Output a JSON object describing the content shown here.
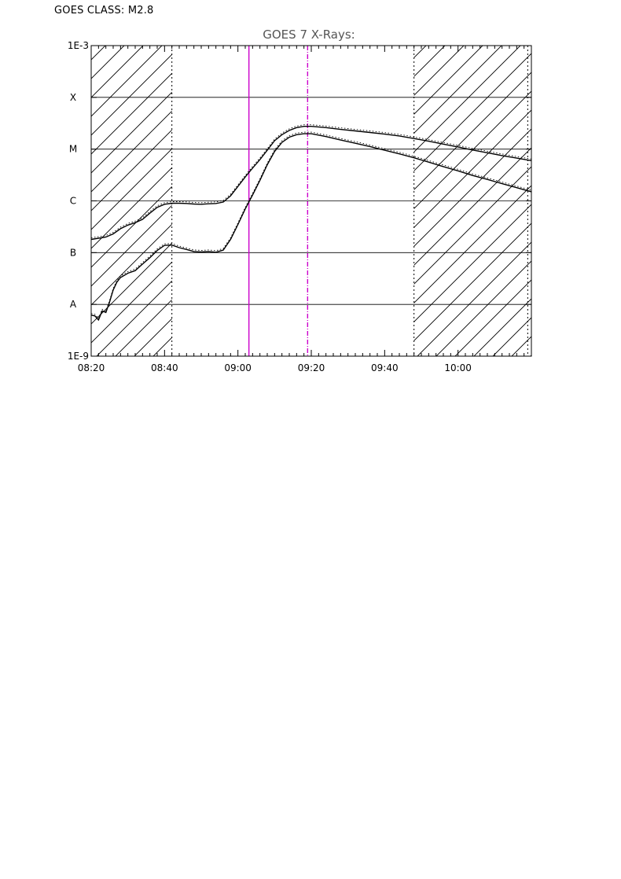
{
  "header": {
    "goes_class": "GOES CLASS: M2.8"
  },
  "chart_data": {
    "type": "line",
    "title": "GOES 7 X-Rays:",
    "xlabel": "",
    "ylabel": "",
    "y_scale": "log",
    "ylim": [
      1e-09,
      0.001
    ],
    "x_range": [
      "08:20",
      "10:20"
    ],
    "x_ticks": [
      "08:20",
      "08:40",
      "09:00",
      "09:20",
      "09:40",
      "10:00"
    ],
    "y_tick_labels": [
      {
        "value": 1e-09,
        "label": "1E-9"
      },
      {
        "value": 1e-08,
        "label": "A"
      },
      {
        "value": 1e-07,
        "label": "B"
      },
      {
        "value": 1e-06,
        "label": "C"
      },
      {
        "value": 1e-05,
        "label": "M"
      },
      {
        "value": 0.0001,
        "label": "X"
      },
      {
        "value": 0.001,
        "label": "1E-3"
      }
    ],
    "grid": "horizontal at flare class levels",
    "colors": {
      "curve": "#000000",
      "marker": "#cc00cc",
      "hatch": "#000000"
    },
    "shaded_intervals": [
      {
        "start": "08:20",
        "end": "08:42"
      },
      {
        "start": "09:48",
        "end": "10:20"
      }
    ],
    "vertical_markers": [
      {
        "time": "08:42",
        "style": "dotted",
        "color": "#000000"
      },
      {
        "time": "09:03",
        "style": "solid",
        "color": "#cc00cc"
      },
      {
        "time": "09:19",
        "style": "dashdot",
        "color": "#cc00cc"
      },
      {
        "time": "09:48",
        "style": "dotted",
        "color": "#000000"
      },
      {
        "time": "10:19",
        "style": "dotted",
        "color": "#000000"
      }
    ],
    "series": [
      {
        "style": "solid",
        "points": [
          [
            "08:20",
            1.8e-07
          ],
          [
            "08:22",
            1.9e-07
          ],
          [
            "08:24",
            2e-07
          ],
          [
            "08:26",
            2.3e-07
          ],
          [
            "08:28",
            2.9e-07
          ],
          [
            "08:30",
            3.4e-07
          ],
          [
            "08:32",
            3.8e-07
          ],
          [
            "08:34",
            4.4e-07
          ],
          [
            "08:36",
            5.8e-07
          ],
          [
            "08:38",
            7.5e-07
          ],
          [
            "08:40",
            8.6e-07
          ],
          [
            "08:42",
            9e-07
          ],
          [
            "08:44",
            9e-07
          ],
          [
            "08:46",
            8.9e-07
          ],
          [
            "08:48",
            8.7e-07
          ],
          [
            "08:50",
            8.6e-07
          ],
          [
            "08:52",
            8.8e-07
          ],
          [
            "08:54",
            8.9e-07
          ],
          [
            "08:56",
            9.5e-07
          ],
          [
            "08:58",
            1.25e-06
          ],
          [
            "09:00",
            1.9e-06
          ],
          [
            "09:02",
            2.9e-06
          ],
          [
            "09:04",
            4.3e-06
          ],
          [
            "09:06",
            6.3e-06
          ],
          [
            "09:08",
            9.5e-06
          ],
          [
            "09:10",
            1.45e-05
          ],
          [
            "09:12",
            1.9e-05
          ],
          [
            "09:14",
            2.3e-05
          ],
          [
            "09:16",
            2.6e-05
          ],
          [
            "09:18",
            2.75e-05
          ],
          [
            "09:20",
            2.75e-05
          ],
          [
            "09:24",
            2.6e-05
          ],
          [
            "09:28",
            2.4e-05
          ],
          [
            "09:32",
            2.25e-05
          ],
          [
            "09:36",
            2.1e-05
          ],
          [
            "09:40",
            1.95e-05
          ],
          [
            "09:44",
            1.8e-05
          ],
          [
            "09:48",
            1.6e-05
          ],
          [
            "09:52",
            1.42e-05
          ],
          [
            "09:56",
            1.25e-05
          ],
          [
            "10:00",
            1.1e-05
          ],
          [
            "10:04",
            9.6e-06
          ],
          [
            "10:08",
            8.5e-06
          ],
          [
            "10:12",
            7.5e-06
          ],
          [
            "10:16",
            6.7e-06
          ],
          [
            "10:20",
            6e-06
          ]
        ]
      },
      {
        "style": "solid",
        "points": [
          [
            "08:20",
            6.2e-09
          ],
          [
            "08:21",
            6e-09
          ],
          [
            "08:22",
            5e-09
          ],
          [
            "08:23",
            7.5e-09
          ],
          [
            "08:24",
            7e-09
          ],
          [
            "08:25",
            1.1e-08
          ],
          [
            "08:26",
            1.9e-08
          ],
          [
            "08:27",
            2.7e-08
          ],
          [
            "08:28",
            3.3e-08
          ],
          [
            "08:30",
            4e-08
          ],
          [
            "08:32",
            4.5e-08
          ],
          [
            "08:34",
            6e-08
          ],
          [
            "08:36",
            8e-08
          ],
          [
            "08:38",
            1.1e-07
          ],
          [
            "08:40",
            1.38e-07
          ],
          [
            "08:42",
            1.4e-07
          ],
          [
            "08:44",
            1.25e-07
          ],
          [
            "08:46",
            1.15e-07
          ],
          [
            "08:48",
            1.05e-07
          ],
          [
            "08:50",
            1.03e-07
          ],
          [
            "08:52",
            1.05e-07
          ],
          [
            "08:54",
            1.02e-07
          ],
          [
            "08:56",
            1.12e-07
          ],
          [
            "08:58",
            1.8e-07
          ],
          [
            "09:00",
            3.5e-07
          ],
          [
            "09:02",
            7e-07
          ],
          [
            "09:04",
            1.3e-06
          ],
          [
            "09:06",
            2.5e-06
          ],
          [
            "09:08",
            5e-06
          ],
          [
            "09:10",
            9e-06
          ],
          [
            "09:12",
            1.35e-05
          ],
          [
            "09:14",
            1.7e-05
          ],
          [
            "09:16",
            1.9e-05
          ],
          [
            "09:18",
            1.98e-05
          ],
          [
            "09:20",
            1.98e-05
          ],
          [
            "09:24",
            1.75e-05
          ],
          [
            "09:28",
            1.5e-05
          ],
          [
            "09:32",
            1.3e-05
          ],
          [
            "09:36",
            1.12e-05
          ],
          [
            "09:40",
            9.5e-06
          ],
          [
            "09:44",
            8.1e-06
          ],
          [
            "09:48",
            6.8e-06
          ],
          [
            "09:52",
            5.6e-06
          ],
          [
            "09:56",
            4.6e-06
          ],
          [
            "10:00",
            3.8e-06
          ],
          [
            "10:04",
            3.1e-06
          ],
          [
            "10:08",
            2.6e-06
          ],
          [
            "10:12",
            2.15e-06
          ],
          [
            "10:16",
            1.8e-06
          ],
          [
            "10:20",
            1.5e-06
          ]
        ]
      }
    ]
  }
}
